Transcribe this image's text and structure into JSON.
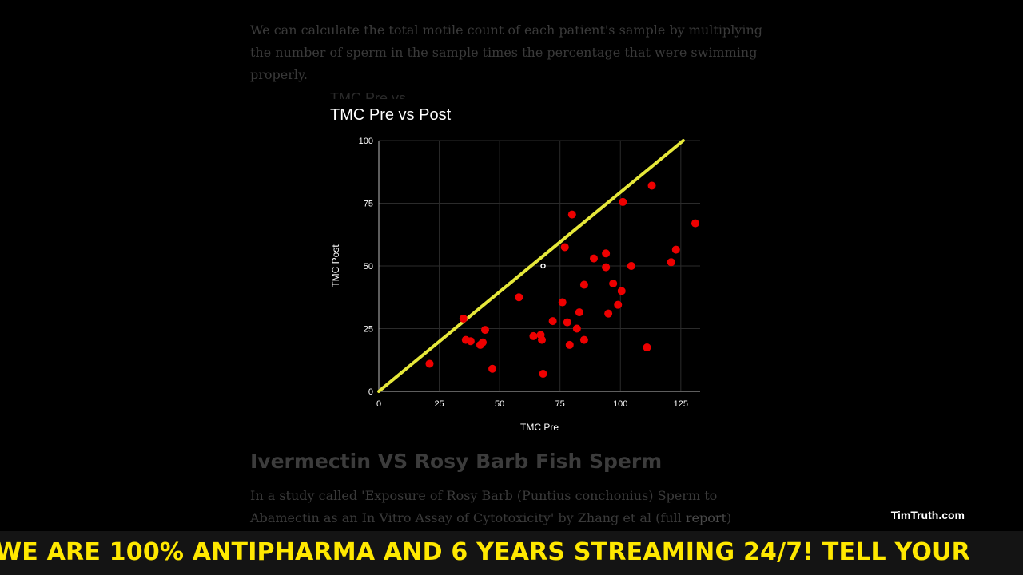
{
  "article": {
    "intro_text": "We can calculate the total motile count of each patient's sample by multiplying the number of sperm in the sample times the percentage that were swimming properly.",
    "section_heading": "Ivermectin VS Rosy Barb Fish Sperm",
    "body_text_before_link": "In a study called 'Exposure of Rosy Barb (Puntius conchonius) Sperm to Abamectin as an In Vitro Assay of Cytotoxicity' by Zhang et al (full ",
    "body_link_text": "report",
    "body_text_after_link": ")"
  },
  "watermark": "TimTruth.com",
  "ticker": {
    "text": "WE ARE 100% ANTIPHARMA AND 6 YEARS STREAMING 24/7!  TELL YOUR"
  },
  "colors": {
    "point": "#ee0000",
    "reference_line": "#e6e83a",
    "ticker_text": "#ffe800",
    "grid": "#2b2b2b"
  },
  "chart_data": {
    "type": "scatter",
    "title": "TMC Pre vs Post",
    "xlabel": "TMC Pre",
    "ylabel": "TMC Post",
    "xlim": [
      0,
      133
    ],
    "ylim": [
      0,
      100
    ],
    "x_ticks": [
      "0",
      "25",
      "50",
      "75",
      "100",
      "125"
    ],
    "y_ticks": [
      "0",
      "25",
      "50",
      "75",
      "100"
    ],
    "grid": true,
    "legend": "none",
    "reference_line": {
      "x": [
        0,
        126
      ],
      "y": [
        0,
        100
      ]
    },
    "highlight_point": {
      "x": 68,
      "y": 50
    },
    "series": [
      {
        "points": [
          [
            21,
            11
          ],
          [
            35,
            29
          ],
          [
            36,
            20.5
          ],
          [
            38,
            20
          ],
          [
            42,
            18.5
          ],
          [
            43,
            19.5
          ],
          [
            44,
            24.5
          ],
          [
            47,
            9
          ],
          [
            58,
            37.5
          ],
          [
            64,
            22
          ],
          [
            67,
            22.5
          ],
          [
            67.5,
            20.5
          ],
          [
            68,
            7
          ],
          [
            72,
            28
          ],
          [
            76,
            35.5
          ],
          [
            77,
            57.5
          ],
          [
            78,
            27.5
          ],
          [
            79,
            18.5
          ],
          [
            80,
            70.5
          ],
          [
            82,
            25
          ],
          [
            83,
            31.5
          ],
          [
            85,
            20.5
          ],
          [
            85,
            42.5
          ],
          [
            89,
            53
          ],
          [
            94,
            55
          ],
          [
            94,
            49.5
          ],
          [
            95,
            31
          ],
          [
            97,
            43
          ],
          [
            99,
            34.5
          ],
          [
            100.5,
            40
          ],
          [
            101,
            75.5
          ],
          [
            104.5,
            50
          ],
          [
            111,
            17.5
          ],
          [
            113,
            82
          ],
          [
            121,
            51.5
          ],
          [
            123,
            56.5
          ],
          [
            131,
            67
          ]
        ]
      }
    ]
  }
}
